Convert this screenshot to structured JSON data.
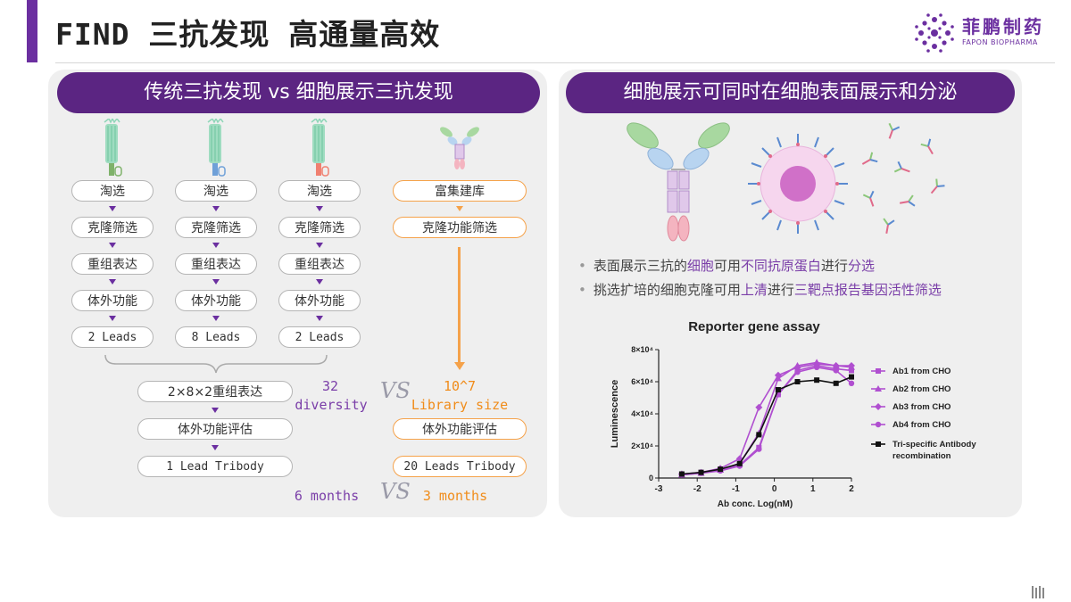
{
  "header": {
    "title": "FIND 三抗发现 高通量高效",
    "logo_cn": "菲鹏制药",
    "logo_en": "FAPON BIOPHARMA"
  },
  "left_panel": {
    "header": "传统三抗发现 vs 细胞展示三抗发现",
    "traditional_columns": [
      {
        "steps": [
          "淘选",
          "克隆筛选",
          "重组表达",
          "体外功能"
        ],
        "leads": "2 Leads",
        "tag_color": "#7fb26a"
      },
      {
        "steps": [
          "淘选",
          "克隆筛选",
          "重组表达",
          "体外功能"
        ],
        "leads": "8 Leads",
        "tag_color": "#6fa0d8"
      },
      {
        "steps": [
          "淘选",
          "克隆筛选",
          "重组表达",
          "体外功能"
        ],
        "leads": "2 Leads",
        "tag_color": "#f08070"
      }
    ],
    "cell_display_steps": [
      "富集建库",
      "克隆功能筛选"
    ],
    "combined_expression": "2×8×2重组表达",
    "combined_eval": "体外功能评估",
    "combined_result": "1 Lead Tribody",
    "diversity_number": "32",
    "diversity_label": "diversity",
    "vs_label": "VS",
    "library_number": "10^7",
    "library_label": "Library size",
    "cd_eval": "体外功能评估",
    "cd_result": "20 Leads Tribody",
    "time_traditional": "6 months",
    "time_cd": "3 months"
  },
  "right_panel": {
    "header": "细胞展示可同时在细胞表面展示和分泌",
    "bullets": [
      [
        {
          "t": "表面展示三抗的"
        },
        {
          "t": "细胞",
          "h": true
        },
        {
          "t": "可用"
        },
        {
          "t": "不同抗原蛋白",
          "h": true
        },
        {
          "t": "进行"
        },
        {
          "t": "分选",
          "h": true
        }
      ],
      [
        {
          "t": "挑选扩培的细胞克隆可用"
        },
        {
          "t": "上清",
          "h": true
        },
        {
          "t": "进行"
        },
        {
          "t": "三靶点报告基因活性筛选",
          "h": true
        }
      ]
    ]
  },
  "chart_data": {
    "type": "scatter",
    "title": "Reporter gene assay",
    "xlabel": "Ab conc. Log(nM)",
    "ylabel": "Luminescence",
    "xlim": [
      -3,
      2
    ],
    "ylim": [
      0,
      80000
    ],
    "xticks": [
      "-3",
      "-2",
      "-1",
      "0",
      "1",
      "2"
    ],
    "yticks": [
      "0",
      "2×10⁴",
      "4×10⁴",
      "6×10⁴",
      "8×10⁴"
    ],
    "x": [
      -2.4,
      -1.9,
      -1.4,
      -0.9,
      -0.4,
      0.1,
      0.6,
      1.1,
      1.6,
      2.0
    ],
    "series": [
      {
        "name": "Ab1 from CHO",
        "marker": "square",
        "color": "#b04fd0",
        "values": [
          2000,
          3500,
          5000,
          8000,
          19000,
          52000,
          67000,
          70000,
          68000,
          67000
        ]
      },
      {
        "name": "Ab2 from CHO",
        "marker": "triangle",
        "color": "#b04fd0",
        "values": [
          2000,
          3000,
          5000,
          9000,
          28000,
          62000,
          70000,
          72000,
          70000,
          69000
        ]
      },
      {
        "name": "Ab3 from CHO",
        "marker": "diamond",
        "color": "#b04fd0",
        "values": [
          2500,
          3500,
          6000,
          12000,
          44000,
          64000,
          69000,
          71000,
          70000,
          70000
        ]
      },
      {
        "name": "Ab4 from CHO",
        "marker": "circle",
        "color": "#b04fd0",
        "values": [
          2000,
          3000,
          4500,
          7500,
          18000,
          52000,
          66000,
          69000,
          67000,
          59000
        ]
      },
      {
        "name": "Tri-specific Antibody recombination",
        "marker": "square",
        "color": "#111111",
        "values": [
          2500,
          3500,
          5500,
          9000,
          27000,
          55000,
          60000,
          61000,
          59000,
          63000
        ]
      }
    ],
    "legend_position": "right"
  }
}
